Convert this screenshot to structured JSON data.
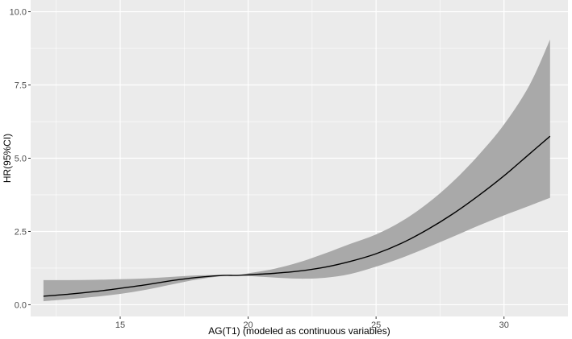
{
  "chart_data": {
    "type": "line",
    "title": "",
    "xlabel": "AG(T1) (modeled as continuous variables)",
    "ylabel": "HR(95%CI)",
    "xlim": [
      11.5,
      32.5
    ],
    "ylim": [
      -0.4,
      10.4
    ],
    "x_ticks": [
      15,
      20,
      25,
      30
    ],
    "x_tick_labels": [
      "15",
      "20",
      "25",
      "30"
    ],
    "y_ticks": [
      0,
      2.5,
      5,
      7.5,
      10
    ],
    "y_tick_labels": [
      "0.0",
      "2.5",
      "5.0",
      "7.5",
      "10.0"
    ],
    "grid": true,
    "legend": "none",
    "colors": {
      "panel_background": "#ebebeb",
      "grid": "#ffffff",
      "ribbon": "#a9a9a9",
      "line": "#000000"
    },
    "series": [
      {
        "x": [
          12,
          13,
          14,
          15,
          16,
          17,
          18,
          19,
          19.5,
          20,
          21,
          22,
          23,
          24,
          25,
          26,
          27,
          28,
          29,
          30,
          31,
          31.8
        ],
        "estimate": [
          0.29,
          0.36,
          0.45,
          0.56,
          0.68,
          0.82,
          0.93,
          1.0,
          1.0,
          1.02,
          1.07,
          1.15,
          1.28,
          1.48,
          1.74,
          2.1,
          2.56,
          3.1,
          3.72,
          4.4,
          5.15,
          5.75
        ],
        "lower": [
          0.12,
          0.19,
          0.27,
          0.37,
          0.51,
          0.69,
          0.86,
          0.98,
          1.0,
          0.98,
          0.93,
          0.89,
          0.92,
          1.05,
          1.3,
          1.6,
          1.95,
          2.32,
          2.7,
          3.05,
          3.38,
          3.65
        ],
        "upper": [
          0.84,
          0.84,
          0.85,
          0.87,
          0.9,
          0.95,
          1.0,
          1.02,
          1.0,
          1.07,
          1.22,
          1.45,
          1.75,
          2.08,
          2.4,
          2.85,
          3.45,
          4.2,
          5.1,
          6.15,
          7.5,
          9.05
        ]
      }
    ]
  }
}
